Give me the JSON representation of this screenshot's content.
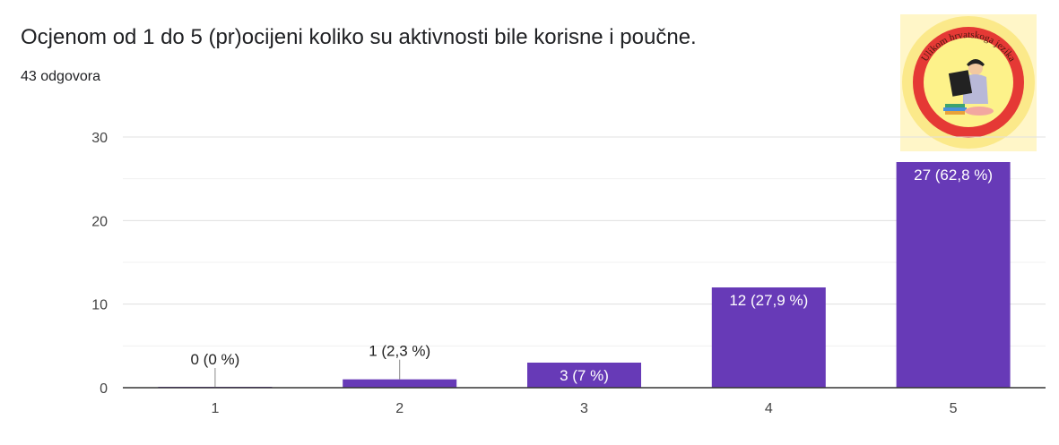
{
  "question": {
    "title": "Ocjenom od 1 do 5 (pr)ocijeni koliko su aktivnosti bile korisne i poučne.",
    "responses": "43 odgovora"
  },
  "logo": {
    "icon": "ulikom-hrvatskoga-jezika-logo",
    "text": "Ulikom hrvatskoga jezika",
    "colors": {
      "outer": "#fbe98a",
      "ring": "#e53935",
      "inner": "#fdf28a"
    }
  },
  "colors": {
    "bar": "#673ab7",
    "grid": "#e6e6e6",
    "axis": "#333333"
  },
  "chart_data": {
    "type": "bar",
    "categories": [
      "1",
      "2",
      "3",
      "4",
      "5"
    ],
    "values": [
      0,
      1,
      3,
      12,
      27
    ],
    "data_labels": [
      "0 (0 %)",
      "1 (2,3 %)",
      "3 (7 %)",
      "12 (27,9 %)",
      "27 (62,8 %)"
    ],
    "ylim": [
      0,
      30
    ],
    "yticks": [
      0,
      10,
      20,
      30
    ],
    "grid": true,
    "title": "",
    "xlabel": "",
    "ylabel": ""
  }
}
